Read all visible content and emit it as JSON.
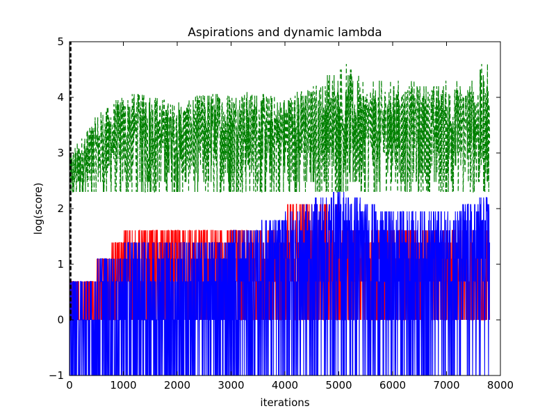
{
  "chart_data": {
    "type": "line",
    "title": "Aspirations and dynamic lambda",
    "xlabel": "iterations",
    "ylabel": "log(score)",
    "xlim": [
      0,
      8000
    ],
    "ylim": [
      -1,
      5
    ],
    "xticks": [
      "0",
      "1000",
      "2000",
      "3000",
      "4000",
      "5000",
      "6000",
      "7000",
      "8000"
    ],
    "yticks": [
      "−1",
      "0",
      "1",
      "2",
      "3",
      "4",
      "5"
    ],
    "grid": false,
    "legend": "none",
    "n_iterations": 7800,
    "series": [
      {
        "color": "#008000",
        "style": "dashed",
        "levels": [
          2.3,
          2.48,
          2.64,
          2.77,
          2.89,
          3.0,
          3.09,
          3.18,
          3.26,
          3.33,
          3.4,
          3.47,
          3.53,
          3.58,
          3.64,
          3.69,
          3.74,
          3.78,
          3.83,
          3.87,
          3.91,
          3.95,
          3.99,
          4.03,
          4.06,
          4.1,
          4.13,
          4.2,
          4.3,
          4.4,
          4.5,
          4.6,
          4.7,
          4.8
        ],
        "envelope": [
          {
            "x": 0,
            "low": 2.3,
            "high": 3.0
          },
          {
            "x": 500,
            "low": 2.3,
            "high": 3.7
          },
          {
            "x": 1000,
            "low": 2.3,
            "high": 4.05
          },
          {
            "x": 1500,
            "low": 2.3,
            "high": 4.1
          },
          {
            "x": 2000,
            "low": 2.3,
            "high": 3.9
          },
          {
            "x": 2500,
            "low": 2.3,
            "high": 4.1
          },
          {
            "x": 3000,
            "low": 2.3,
            "high": 4.1
          },
          {
            "x": 3500,
            "low": 2.3,
            "high": 4.1
          },
          {
            "x": 4000,
            "low": 2.3,
            "high": 4.0
          },
          {
            "x": 4500,
            "low": 2.3,
            "high": 4.3
          },
          {
            "x": 5000,
            "low": 2.3,
            "high": 4.8
          },
          {
            "x": 5500,
            "low": 2.3,
            "high": 4.3
          },
          {
            "x": 6000,
            "low": 2.3,
            "high": 4.4
          },
          {
            "x": 6500,
            "low": 2.3,
            "high": 4.3
          },
          {
            "x": 7000,
            "low": 2.3,
            "high": 4.3
          },
          {
            "x": 7500,
            "low": 2.3,
            "high": 4.5
          },
          {
            "x": 7800,
            "low": 2.3,
            "high": 4.7
          }
        ]
      },
      {
        "color": "#ff0000",
        "style": "solid",
        "levels": [
          0,
          0.69,
          1.1,
          1.39,
          1.61,
          2.08
        ],
        "envelope": [
          {
            "x": 0,
            "low": 0,
            "high": 0.69
          },
          {
            "x": 500,
            "low": 0,
            "high": 1.1
          },
          {
            "x": 1000,
            "low": 0,
            "high": 1.61
          },
          {
            "x": 2000,
            "low": 0,
            "high": 1.61
          },
          {
            "x": 3000,
            "low": 0,
            "high": 1.61
          },
          {
            "x": 4000,
            "low": 0,
            "high": 2.08
          },
          {
            "x": 5000,
            "low": 0,
            "high": 2.08
          },
          {
            "x": 6000,
            "low": 0,
            "high": 1.79
          },
          {
            "x": 7000,
            "low": 0,
            "high": 1.95
          },
          {
            "x": 7800,
            "low": 0,
            "high": 2.08
          }
        ]
      },
      {
        "color": "#0000ff",
        "style": "solid",
        "levels": [
          -1,
          0,
          0.69,
          1.1,
          1.39,
          1.61,
          1.79,
          1.95,
          2.08,
          2.2,
          2.3,
          2.4
        ],
        "envelope": [
          {
            "x": 0,
            "low": -1,
            "high": 0.69
          },
          {
            "x": 500,
            "low": -1,
            "high": 1.1
          },
          {
            "x": 1000,
            "low": -1,
            "high": 1.39
          },
          {
            "x": 2000,
            "low": -1,
            "high": 1.39
          },
          {
            "x": 3000,
            "low": -1,
            "high": 1.61
          },
          {
            "x": 4000,
            "low": -1,
            "high": 1.95
          },
          {
            "x": 5000,
            "low": -1,
            "high": 2.4
          },
          {
            "x": 6000,
            "low": -1,
            "high": 1.95
          },
          {
            "x": 7000,
            "low": -1,
            "high": 1.95
          },
          {
            "x": 7800,
            "low": -1,
            "high": 2.3
          }
        ]
      },
      {
        "color": "#000000",
        "style": "dashed",
        "points": [
          [
            0,
            5
          ],
          [
            20,
            5
          ],
          [
            20,
            0
          ],
          [
            30,
            0
          ]
        ]
      }
    ]
  }
}
